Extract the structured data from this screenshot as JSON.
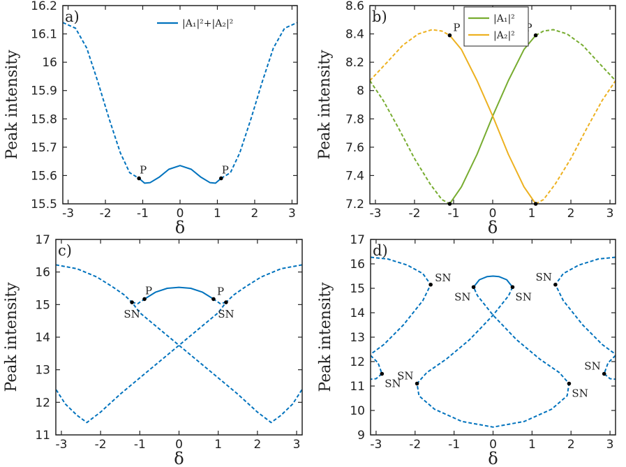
{
  "chart_data": [
    {
      "panel": "a)",
      "type": "line",
      "xlabel": "δ",
      "ylabel": "Peak intensity",
      "xlim": [
        -3.14159,
        3.14159
      ],
      "ylim": [
        15.5,
        16.2
      ],
      "xticks": [
        -3,
        -2,
        -1,
        0,
        1,
        2,
        3
      ],
      "yticks": [
        15.5,
        15.6,
        15.7,
        15.8,
        15.9,
        16,
        16.1,
        16.2
      ],
      "ytick_labels": [
        "15.5",
        "15.6",
        "15.7",
        "15.8",
        "15.9",
        "16",
        "16.1",
        "16.2"
      ],
      "legend": {
        "position": "top-right",
        "entries": [
          {
            "label": "|A₁|²+|A₂|²",
            "color": "#0072BD"
          }
        ]
      },
      "series": [
        {
          "color": "#0072BD",
          "style": "dashed",
          "points": [
            [
              -3.14159,
              16.14
            ],
            [
              -2.8,
              16.12
            ],
            [
              -2.5,
              16.05
            ],
            [
              -2.2,
              15.93
            ],
            [
              -1.9,
              15.8
            ],
            [
              -1.6,
              15.68
            ],
            [
              -1.35,
              15.61
            ],
            [
              -1.1,
              15.59
            ]
          ]
        },
        {
          "color": "#0072BD",
          "style": "solid",
          "points": [
            [
              -1.1,
              15.59
            ],
            [
              -0.95,
              15.573
            ],
            [
              -0.8,
              15.575
            ],
            [
              -0.55,
              15.595
            ],
            [
              -0.3,
              15.622
            ],
            [
              0,
              15.635
            ],
            [
              0.3,
              15.622
            ],
            [
              0.55,
              15.595
            ],
            [
              0.8,
              15.575
            ],
            [
              0.95,
              15.573
            ],
            [
              1.1,
              15.59
            ]
          ]
        },
        {
          "color": "#0072BD",
          "style": "dashed",
          "points": [
            [
              1.1,
              15.59
            ],
            [
              1.35,
              15.61
            ],
            [
              1.6,
              15.68
            ],
            [
              1.9,
              15.8
            ],
            [
              2.2,
              15.93
            ],
            [
              2.5,
              16.05
            ],
            [
              2.8,
              16.12
            ],
            [
              3.14159,
              16.14
            ]
          ]
        }
      ],
      "markers": [
        {
          "x": -1.1,
          "y": 15.59,
          "label": "P",
          "label_side": "above"
        },
        {
          "x": 1.1,
          "y": 15.59,
          "label": "P",
          "label_side": "above"
        }
      ]
    },
    {
      "panel": "b)",
      "type": "line",
      "xlabel": "δ",
      "ylabel": "Peak intensity",
      "xlim": [
        -3.14159,
        3.14159
      ],
      "ylim": [
        7.2,
        8.6
      ],
      "xticks": [
        -3,
        -2,
        -1,
        0,
        1,
        2,
        3
      ],
      "yticks": [
        7.2,
        7.4,
        7.6,
        7.8,
        8.0,
        8.2,
        8.4,
        8.6
      ],
      "ytick_labels": [
        "7.2",
        "7.4",
        "7.6",
        "7.8",
        "8",
        "8.2",
        "8.4",
        "8.6"
      ],
      "legend": {
        "position": "top-center",
        "entries": [
          {
            "label": "|A₁|²",
            "color": "#77AC30"
          },
          {
            "label": "|A₂|²",
            "color": "#EDB120"
          }
        ]
      },
      "series": [
        {
          "color": "#77AC30",
          "style": "dashed",
          "points": [
            [
              -3.14159,
              8.07
            ],
            [
              -2.8,
              7.93
            ],
            [
              -2.4,
              7.73
            ],
            [
              -2.0,
              7.52
            ],
            [
              -1.6,
              7.34
            ],
            [
              -1.3,
              7.23
            ],
            [
              -1.1,
              7.2
            ]
          ]
        },
        {
          "color": "#77AC30",
          "style": "solid",
          "points": [
            [
              -1.1,
              7.2
            ],
            [
              -0.8,
              7.32
            ],
            [
              -0.4,
              7.55
            ],
            [
              0,
              7.82
            ],
            [
              0.4,
              8.07
            ],
            [
              0.8,
              8.29
            ],
            [
              1.1,
              8.39
            ]
          ]
        },
        {
          "color": "#77AC30",
          "style": "dashed",
          "points": [
            [
              1.1,
              8.39
            ],
            [
              1.3,
              8.42
            ],
            [
              1.55,
              8.43
            ],
            [
              1.9,
              8.4
            ],
            [
              2.3,
              8.32
            ],
            [
              2.7,
              8.2
            ],
            [
              3.14159,
              8.07
            ]
          ]
        },
        {
          "color": "#EDB120",
          "style": "dashed",
          "points": [
            [
              -3.14159,
              8.07
            ],
            [
              -2.7,
              8.2
            ],
            [
              -2.3,
              8.32
            ],
            [
              -1.9,
              8.4
            ],
            [
              -1.55,
              8.43
            ],
            [
              -1.3,
              8.42
            ],
            [
              -1.1,
              8.39
            ]
          ]
        },
        {
          "color": "#EDB120",
          "style": "solid",
          "points": [
            [
              -1.1,
              8.39
            ],
            [
              -0.8,
              8.29
            ],
            [
              -0.4,
              8.07
            ],
            [
              0,
              7.82
            ],
            [
              0.4,
              7.55
            ],
            [
              0.8,
              7.32
            ],
            [
              1.1,
              7.2
            ]
          ]
        },
        {
          "color": "#EDB120",
          "style": "dashed",
          "points": [
            [
              1.1,
              7.2
            ],
            [
              1.3,
              7.23
            ],
            [
              1.6,
              7.34
            ],
            [
              2.0,
              7.52
            ],
            [
              2.4,
              7.73
            ],
            [
              2.8,
              7.93
            ],
            [
              3.14159,
              8.07
            ]
          ]
        }
      ],
      "markers": [
        {
          "x": -1.1,
          "y": 8.39,
          "label": "P",
          "label_side": "above-right"
        },
        {
          "x": 1.1,
          "y": 8.39,
          "label": "P",
          "label_side": "above-left"
        },
        {
          "x": -1.1,
          "y": 7.2,
          "label": "",
          "label_side": "none"
        },
        {
          "x": 1.1,
          "y": 7.2,
          "label": "",
          "label_side": "none"
        }
      ]
    },
    {
      "panel": "c)",
      "type": "line",
      "xlabel": "δ",
      "ylabel": "Peak intensity",
      "xlim": [
        -3.14159,
        3.14159
      ],
      "ylim": [
        11,
        17
      ],
      "xticks": [
        -3,
        -2,
        -1,
        0,
        1,
        2,
        3
      ],
      "yticks": [
        11,
        12,
        13,
        14,
        15,
        16,
        17
      ],
      "ytick_labels": [
        "11",
        "12",
        "13",
        "14",
        "15",
        "16",
        "17"
      ],
      "series": [
        {
          "color": "#0072BD",
          "style": "dashed",
          "points": [
            [
              -3.14159,
              16.22
            ],
            [
              -2.6,
              16.1
            ],
            [
              -2.1,
              15.85
            ],
            [
              -1.7,
              15.55
            ],
            [
              -1.4,
              15.3
            ],
            [
              -1.2,
              15.07
            ],
            [
              -1.0,
              14.75
            ],
            [
              -0.5,
              14.25
            ],
            [
              0,
              13.75
            ],
            [
              0.5,
              13.25
            ],
            [
              1.0,
              12.75
            ],
            [
              1.5,
              12.25
            ],
            [
              2.0,
              11.7
            ],
            [
              2.35,
              11.38
            ],
            [
              2.6,
              11.6
            ],
            [
              2.9,
              11.95
            ],
            [
              3.14159,
              12.4
            ]
          ]
        },
        {
          "color": "#0072BD",
          "style": "dashed",
          "points": [
            [
              3.14159,
              16.22
            ],
            [
              2.6,
              16.1
            ],
            [
              2.1,
              15.85
            ],
            [
              1.7,
              15.55
            ],
            [
              1.4,
              15.3
            ],
            [
              1.2,
              15.07
            ],
            [
              1.0,
              14.75
            ],
            [
              0.5,
              14.25
            ],
            [
              0,
              13.75
            ],
            [
              -0.5,
              13.25
            ],
            [
              -1.0,
              12.75
            ],
            [
              -1.5,
              12.25
            ],
            [
              -2.0,
              11.7
            ],
            [
              -2.35,
              11.38
            ],
            [
              -2.6,
              11.6
            ],
            [
              -2.9,
              11.95
            ],
            [
              -3.14159,
              12.4
            ]
          ]
        },
        {
          "color": "#0072BD",
          "style": "dashed",
          "points": [
            [
              -1.2,
              15.07
            ],
            [
              -1.05,
              15.03
            ],
            [
              -0.88,
              15.17
            ]
          ]
        },
        {
          "color": "#0072BD",
          "style": "dashed",
          "points": [
            [
              1.2,
              15.07
            ],
            [
              1.05,
              15.03
            ],
            [
              0.88,
              15.17
            ]
          ]
        },
        {
          "color": "#0072BD",
          "style": "solid",
          "points": [
            [
              -0.88,
              15.17
            ],
            [
              -0.6,
              15.38
            ],
            [
              -0.3,
              15.5
            ],
            [
              0,
              15.53
            ],
            [
              0.3,
              15.5
            ],
            [
              0.6,
              15.38
            ],
            [
              0.88,
              15.17
            ]
          ]
        }
      ],
      "markers": [
        {
          "x": -1.2,
          "y": 15.07,
          "label": "SN",
          "label_side": "below"
        },
        {
          "x": -0.88,
          "y": 15.17,
          "label": "P",
          "label_side": "above"
        },
        {
          "x": 0.88,
          "y": 15.17,
          "label": "P",
          "label_side": "above-right"
        },
        {
          "x": 1.2,
          "y": 15.07,
          "label": "SN",
          "label_side": "below"
        }
      ]
    },
    {
      "panel": "d)",
      "type": "line",
      "xlabel": "δ",
      "ylabel": "Peak intensity",
      "xlim": [
        -3.14159,
        3.14159
      ],
      "ylim": [
        9,
        17
      ],
      "xticks": [
        -3,
        -2,
        -1,
        0,
        1,
        2,
        3
      ],
      "yticks": [
        9,
        10,
        11,
        12,
        13,
        14,
        15,
        16,
        17
      ],
      "ytick_labels": [
        "9",
        "10",
        "11",
        "12",
        "13",
        "14",
        "15",
        "16",
        "17"
      ],
      "series": [
        {
          "color": "#0072BD",
          "style": "dashed",
          "points": [
            [
              -3.14159,
              16.27
            ],
            [
              -2.7,
              16.2
            ],
            [
              -2.2,
              15.95
            ],
            [
              -1.8,
              15.6
            ],
            [
              -1.6,
              15.15
            ],
            [
              -1.8,
              14.5
            ],
            [
              -2.3,
              13.5
            ],
            [
              -2.8,
              12.7
            ],
            [
              -3.14159,
              12.3
            ]
          ]
        },
        {
          "color": "#0072BD",
          "style": "dashed",
          "points": [
            [
              -3.14159,
              12.25
            ],
            [
              -2.95,
              11.95
            ],
            [
              -2.85,
              11.5
            ],
            [
              -3.0,
              11.3
            ],
            [
              -3.14159,
              11.28
            ]
          ]
        },
        {
          "color": "#0072BD",
          "style": "dashed",
          "points": [
            [
              3.14159,
              16.27
            ],
            [
              2.7,
              16.2
            ],
            [
              2.2,
              15.95
            ],
            [
              1.8,
              15.6
            ],
            [
              1.6,
              15.15
            ],
            [
              1.8,
              14.5
            ],
            [
              2.3,
              13.5
            ],
            [
              2.8,
              12.7
            ],
            [
              3.14159,
              12.3
            ]
          ]
        },
        {
          "color": "#0072BD",
          "style": "dashed",
          "points": [
            [
              3.14159,
              12.25
            ],
            [
              2.95,
              11.95
            ],
            [
              2.85,
              11.5
            ],
            [
              3.0,
              11.3
            ],
            [
              3.14159,
              11.28
            ]
          ]
        },
        {
          "color": "#0072BD",
          "style": "dashed",
          "points": [
            [
              0.5,
              15.05
            ],
            [
              0.4,
              14.7
            ],
            [
              0,
              13.9
            ],
            [
              -0.6,
              12.9
            ],
            [
              -1.2,
              12.1
            ],
            [
              -1.7,
              11.55
            ],
            [
              -1.95,
              11.1
            ],
            [
              -1.9,
              10.6
            ],
            [
              -1.5,
              10.05
            ],
            [
              -0.8,
              9.55
            ],
            [
              0,
              9.32
            ],
            [
              0.8,
              9.55
            ],
            [
              1.5,
              10.05
            ],
            [
              1.9,
              10.6
            ],
            [
              1.95,
              11.1
            ],
            [
              1.7,
              11.55
            ],
            [
              1.2,
              12.1
            ],
            [
              0.6,
              12.9
            ],
            [
              0,
              13.9
            ],
            [
              -0.4,
              14.7
            ],
            [
              -0.5,
              15.05
            ]
          ]
        },
        {
          "color": "#0072BD",
          "style": "solid",
          "points": [
            [
              -0.5,
              15.05
            ],
            [
              -0.35,
              15.35
            ],
            [
              -0.15,
              15.48
            ],
            [
              0,
              15.5
            ],
            [
              0.15,
              15.48
            ],
            [
              0.35,
              15.35
            ],
            [
              0.5,
              15.05
            ]
          ]
        }
      ],
      "markers": [
        {
          "x": -1.6,
          "y": 15.15,
          "label": "SN",
          "label_side": "right"
        },
        {
          "x": -0.5,
          "y": 15.05,
          "label": "SN",
          "label_side": "below-left"
        },
        {
          "x": 0.5,
          "y": 15.05,
          "label": "SN",
          "label_side": "below-right"
        },
        {
          "x": 1.6,
          "y": 15.15,
          "label": "SN",
          "label_side": "above-left"
        },
        {
          "x": -2.85,
          "y": 11.5,
          "label": "SN",
          "label_side": "below-right"
        },
        {
          "x": -1.95,
          "y": 11.1,
          "label": "SN",
          "label_side": "above-left"
        },
        {
          "x": 1.95,
          "y": 11.1,
          "label": "SN",
          "label_side": "below-right"
        },
        {
          "x": 2.85,
          "y": 11.5,
          "label": "SN",
          "label_side": "above-left"
        }
      ]
    }
  ]
}
